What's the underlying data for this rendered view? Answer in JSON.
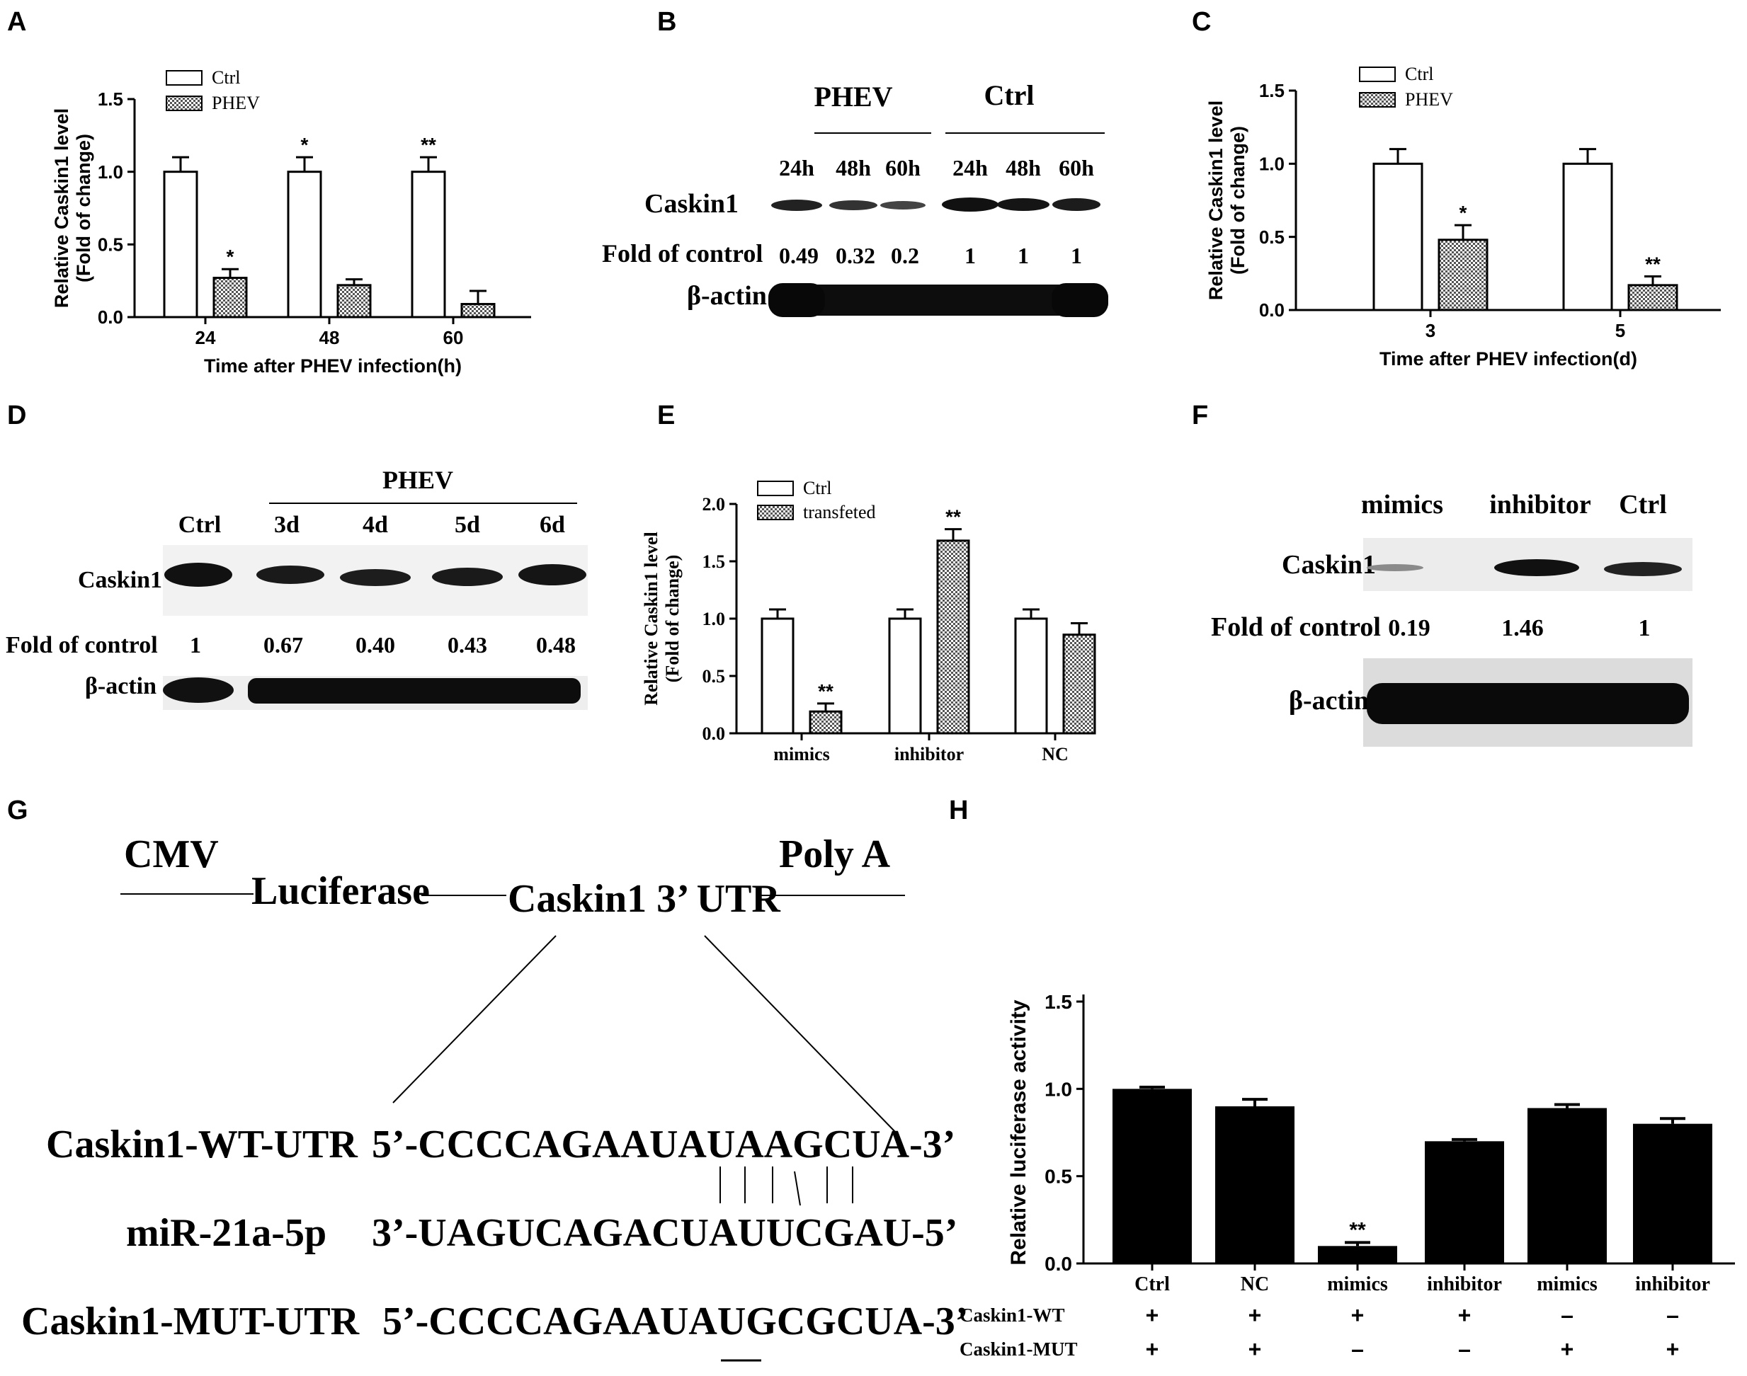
{
  "panels": {
    "A": "A",
    "B": "B",
    "C": "C",
    "D": "D",
    "E": "E",
    "F": "F",
    "G": "G",
    "H": "H"
  },
  "chart_data": [
    {
      "panel": "A",
      "type": "bar",
      "categories": [
        "24",
        "48",
        "60"
      ],
      "series": [
        {
          "name": "Ctrl",
          "values": [
            1.0,
            1.0,
            1.0
          ],
          "errors": [
            0.1,
            0.1,
            0.1
          ],
          "stars": [
            "",
            "",
            ""
          ]
        },
        {
          "name": "PHEV",
          "values": [
            0.27,
            0.22,
            0.09
          ],
          "errors": [
            0.06,
            0.04,
            0.09
          ],
          "stars": [
            "*",
            "",
            ""
          ]
        }
      ],
      "top_stars": [
        "",
        "*",
        "**"
      ],
      "xlabel": "Time after PHEV infection(h)",
      "ylabel": "Relative Caskin1 level",
      "ylabel2": "(Fold of change)",
      "ylim": [
        0,
        1.5
      ],
      "yticks": [
        "0.0",
        "0.5",
        "1.0",
        "1.5"
      ],
      "legend": "top-left"
    },
    {
      "panel": "C",
      "type": "bar",
      "categories": [
        "3",
        "5"
      ],
      "series": [
        {
          "name": "Ctrl",
          "values": [
            1.0,
            1.0
          ],
          "errors": [
            0.1,
            0.1
          ],
          "stars": [
            "",
            ""
          ]
        },
        {
          "name": "PHEV",
          "values": [
            0.48,
            0.17
          ],
          "errors": [
            0.1,
            0.06
          ],
          "stars": [
            "*",
            "**"
          ]
        }
      ],
      "top_stars": [
        "",
        ""
      ],
      "xlabel": "Time after PHEV infection(d)",
      "ylabel": "Relative Caskin1 level",
      "ylabel2": "(Fold of change)",
      "ylim": [
        0,
        1.5
      ],
      "yticks": [
        "0.0",
        "0.5",
        "1.0",
        "1.5"
      ],
      "legend": "top-left"
    },
    {
      "panel": "E",
      "type": "bar",
      "categories": [
        "mimics",
        "inhibitor",
        "NC"
      ],
      "series": [
        {
          "name": "Ctrl",
          "values": [
            1.0,
            1.0,
            1.0
          ],
          "errors": [
            0.08,
            0.08,
            0.08
          ],
          "stars": [
            "",
            "",
            ""
          ]
        },
        {
          "name": "transfeted",
          "values": [
            0.19,
            1.68,
            0.86
          ],
          "errors": [
            0.07,
            0.1,
            0.1
          ],
          "stars": [
            "**",
            "**",
            ""
          ]
        }
      ],
      "top_stars": [
        "",
        "",
        ""
      ],
      "xlabel": "",
      "ylabel": "Relative Caskin1 level",
      "ylabel2": "(Fold of change)",
      "ylim": [
        0,
        2.0
      ],
      "yticks": [
        "0.0",
        "0.5",
        "1.0",
        "1.5",
        "2.0"
      ],
      "legend": "top-left"
    },
    {
      "panel": "H",
      "type": "bar",
      "categories": [
        "Ctrl",
        "NC",
        "mimics",
        "inhibitor",
        "mimics",
        "inhibitor"
      ],
      "values": [
        1.0,
        0.9,
        0.1,
        0.7,
        0.89,
        0.8
      ],
      "errors": [
        0.01,
        0.04,
        0.02,
        0.01,
        0.02,
        0.03
      ],
      "stars": [
        "",
        "",
        "**",
        "",
        "",
        ""
      ],
      "xlabel": "",
      "ylabel": "Relative luciferase activity",
      "ylim": [
        0,
        1.5
      ],
      "yticks": [
        "0.0",
        "0.5",
        "1.0",
        "1.5"
      ],
      "rows": [
        {
          "label": "Caskin1-WT",
          "marks": [
            "+",
            "+",
            "+",
            "+",
            "–",
            "–"
          ]
        },
        {
          "label": "Caskin1-MUT",
          "marks": [
            "+",
            "+",
            "–",
            "–",
            "+",
            "+"
          ]
        }
      ]
    }
  ],
  "blotB": {
    "group1": "PHEV",
    "group2": "Ctrl",
    "lanes": [
      "24h",
      "48h",
      "60h",
      "24h",
      "48h",
      "60h"
    ],
    "protein": "Caskin1",
    "fold_label": "Fold of control",
    "folds": [
      "0.49",
      "0.32",
      "0.2",
      "1",
      "1",
      "1"
    ],
    "loading": "β-actin"
  },
  "blotD": {
    "group": "PHEV",
    "lanes": [
      "Ctrl",
      "3d",
      "4d",
      "5d",
      "6d"
    ],
    "protein": "Caskin1",
    "fold_label": "Fold of control",
    "folds": [
      "1",
      "0.67",
      "0.40",
      "0.43",
      "0.48"
    ],
    "loading": "β-actin"
  },
  "blotF": {
    "lanes": [
      "mimics",
      "inhibitor",
      "Ctrl"
    ],
    "protein": "Caskin1",
    "fold_label": "Fold of control",
    "folds": [
      "0.19",
      "1.46",
      "1"
    ],
    "loading": "β-actin"
  },
  "diagramG": {
    "cmv": "CMV",
    "luciferase": "Luciferase",
    "utr": "Caskin1 3’ UTR",
    "polya": "Poly A",
    "wt_label": "Caskin1-WT-UTR",
    "wt_seq": "5’-CCCCAGAAUAUAAGCUA-3’",
    "mir_label": "miR-21a-5p",
    "mir_seq": "3’-UAGUCAGACUAUUCGAU-5’",
    "mut_label": "Caskin1-MUT-UTR",
    "mut_seq": "5’-CCCCAGAAUAUGCGCUA-3’"
  }
}
